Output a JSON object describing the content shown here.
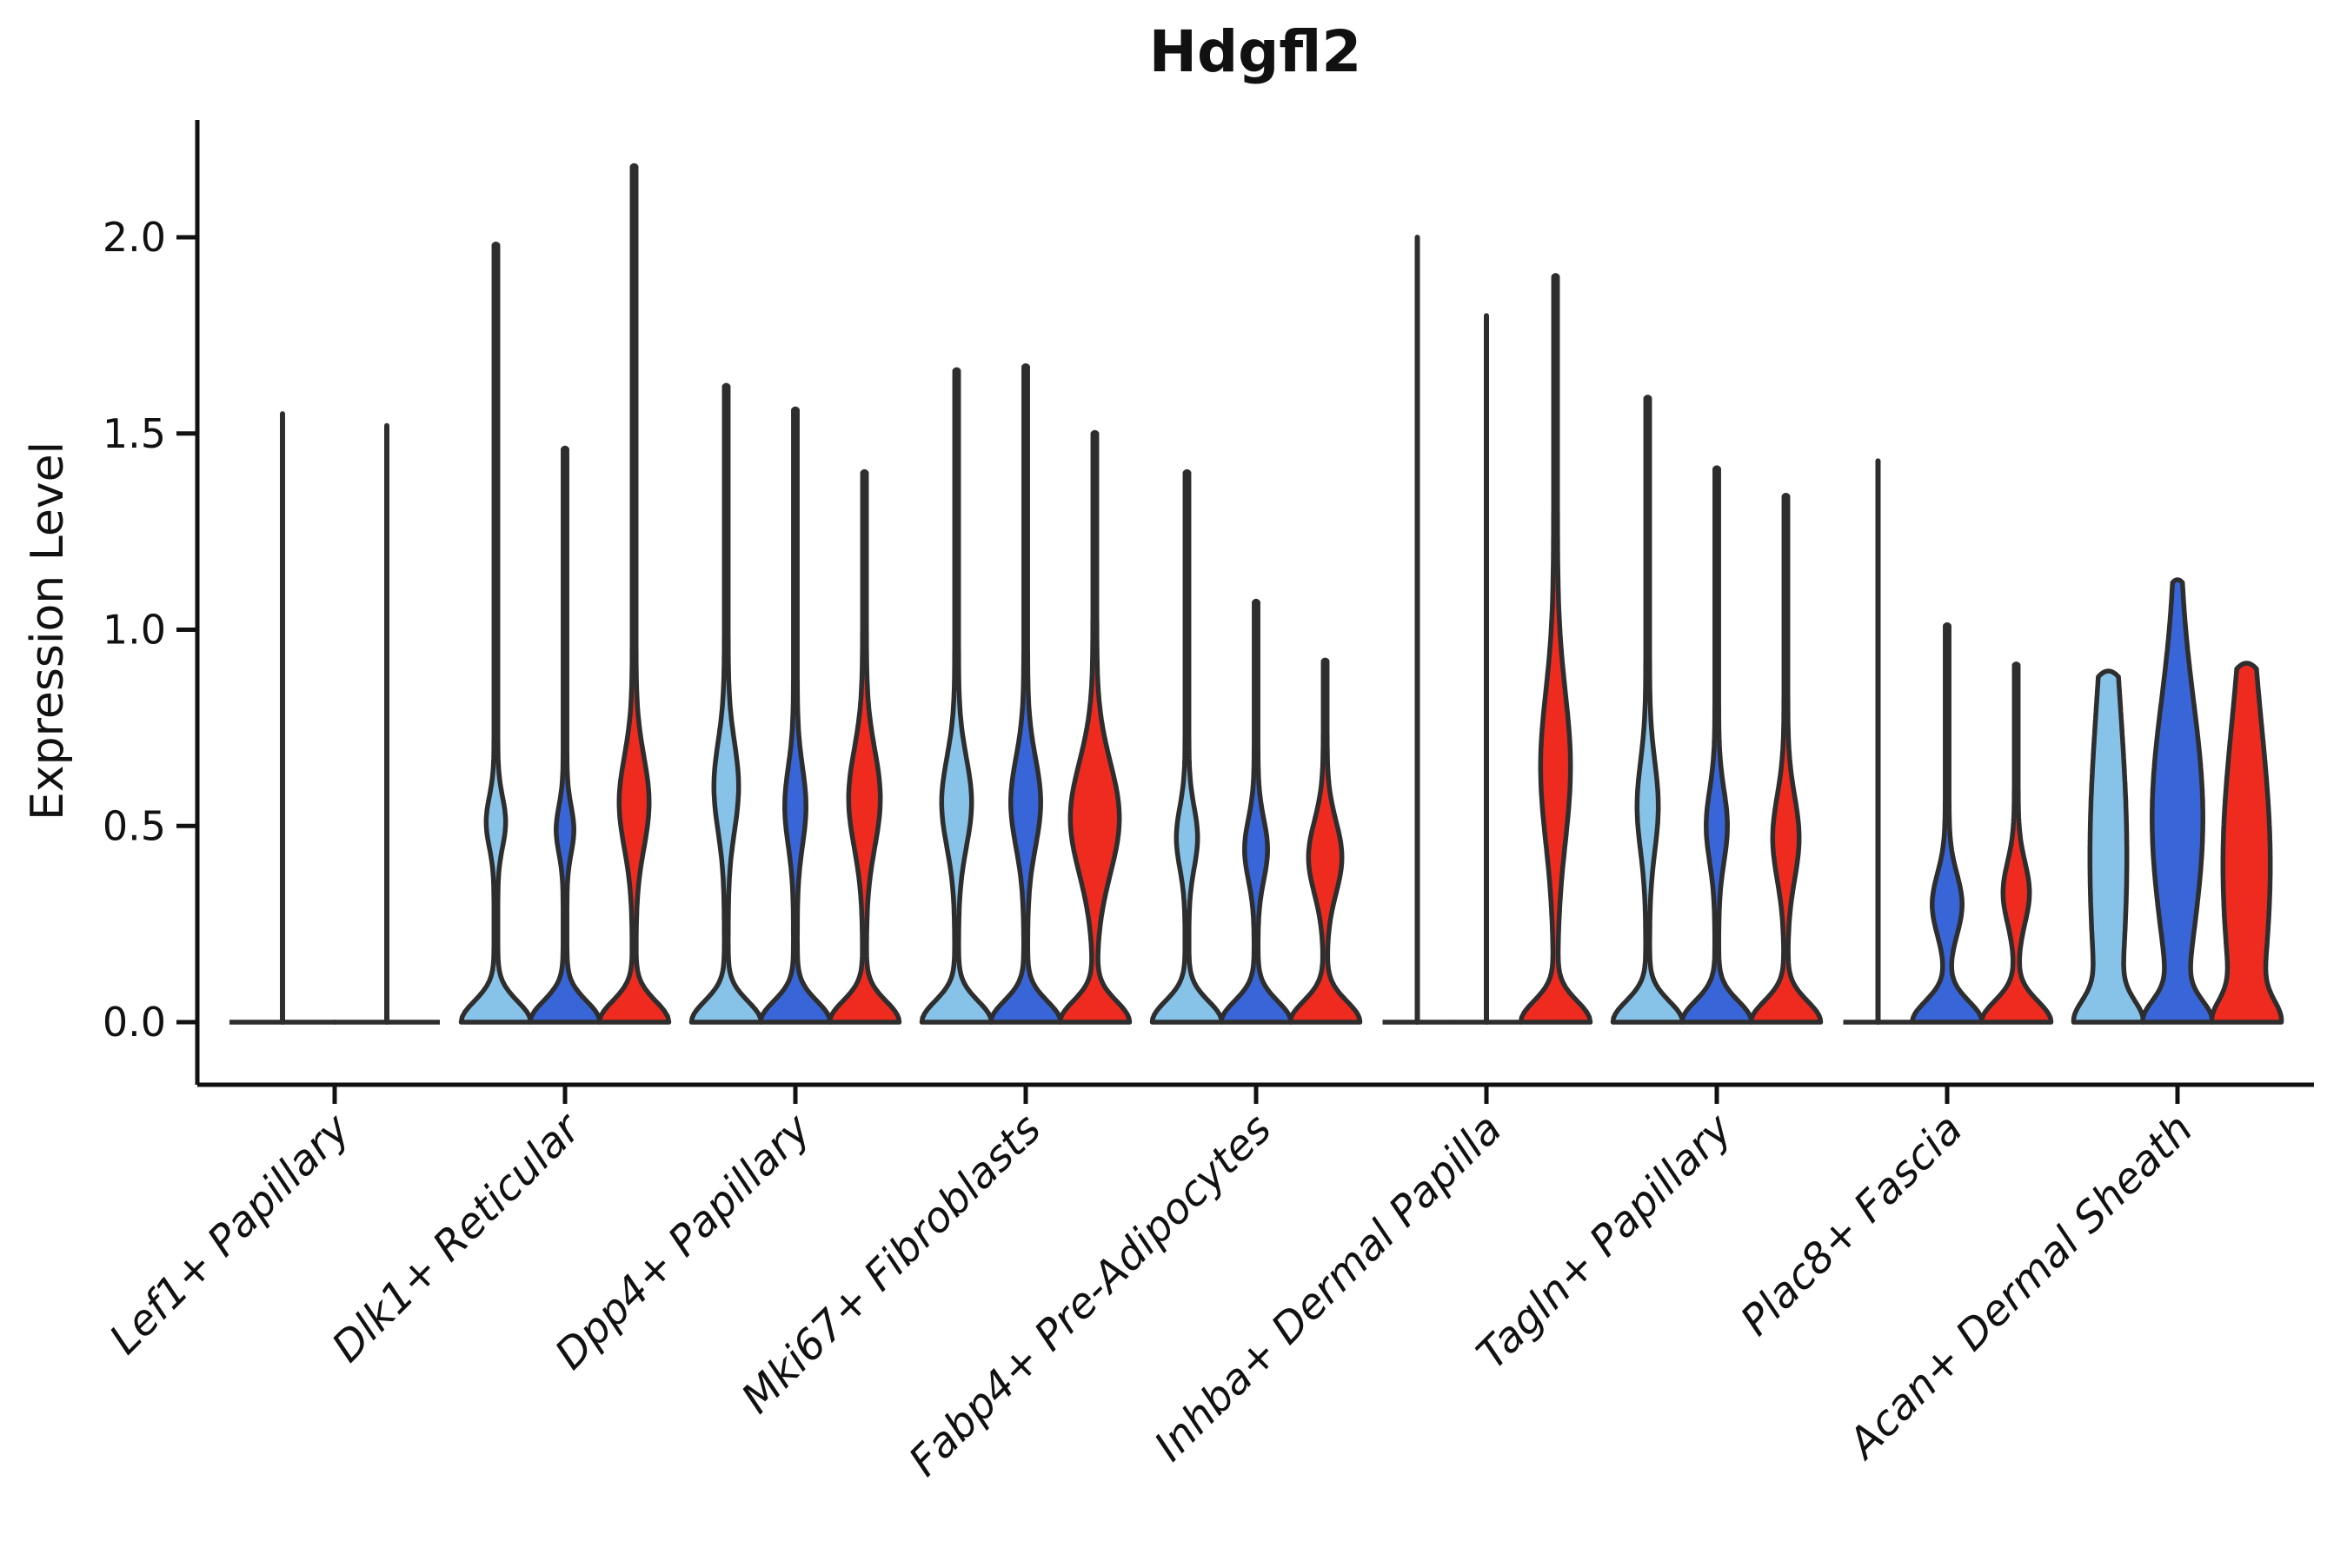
{
  "title": "Hdgfl2",
  "axes": {
    "y": {
      "label": "Expression Level",
      "tick_labels": [
        "0.0",
        "0.5",
        "1.0",
        "1.5",
        "2.0"
      ],
      "tick_values": [
        0,
        0.5,
        1.0,
        1.5,
        2.0
      ]
    },
    "x": {
      "categories": [
        "Lef1+ Papillary",
        "Dlk1+ Reticular",
        "Dpp4+ Papillary",
        "Mki67+ Fibroblasts",
        "Fabp4+ Pre-Adipocytes",
        "Inhba+ Dermal Papilla",
        "Tagln+ Papillary",
        "Plac8+ Fascia",
        "Acan+ Dermal Sheath"
      ]
    }
  },
  "colors": {
    "light_blue": "#87C3E9",
    "royal_blue": "#3866D9",
    "red": "#EF2B20",
    "line_only": "none",
    "outline": "#2E2E2E",
    "axis": "#111111",
    "background": "#FFFFFF"
  },
  "chart_data": {
    "type": "violin",
    "title": "Hdgfl2",
    "xlabel": "",
    "ylabel": "Expression Level",
    "ylim": [
      0,
      2.3
    ],
    "yticks": [
      0,
      0.5,
      1.0,
      1.5,
      2.0
    ],
    "grid": false,
    "legend_position": "none",
    "series": [
      "light_blue",
      "royal_blue",
      "red"
    ],
    "categories": [
      "Lef1+ Papillary",
      "Dlk1+ Reticular",
      "Dpp4+ Papillary",
      "Mki67+ Fibroblasts",
      "Fabp4+ Pre-Adipocytes",
      "Inhba+ Dermal Papilla",
      "Tagln+ Papillary",
      "Plac8+ Fascia",
      "Acan+ Dermal Sheath"
    ],
    "violins": [
      [
        {
          "series": "line_only",
          "shape": "spike",
          "offset": -60,
          "max_expression": 1.55,
          "base_halfwidth": 61,
          "bulge": null
        },
        {
          "series": "line_only",
          "shape": "spike",
          "offset": 60,
          "max_expression": 1.52,
          "base_halfwidth": 61,
          "bulge": null
        }
      ],
      [
        {
          "series": "light_blue",
          "shape": "violin",
          "offset": -79.5,
          "max_expression": 1.98,
          "base_halfwidth": 40,
          "bulge": {
            "center": 0.51,
            "spread": 0.09,
            "halfwidth": 9
          }
        },
        {
          "series": "royal_blue",
          "shape": "violin",
          "offset": 0,
          "max_expression": 1.46,
          "base_halfwidth": 40,
          "bulge": {
            "center": 0.49,
            "spread": 0.085,
            "halfwidth": 8
          }
        },
        {
          "series": "red",
          "shape": "violin",
          "offset": 79.5,
          "max_expression": 2.18,
          "base_halfwidth": 40,
          "bulge": {
            "center": 0.56,
            "spread": 0.165,
            "halfwidth": 15
          }
        }
      ],
      [
        {
          "series": "light_blue",
          "shape": "violin",
          "offset": -79.5,
          "max_expression": 1.62,
          "base_halfwidth": 40,
          "bulge": {
            "center": 0.6,
            "spread": 0.16,
            "halfwidth": 12
          }
        },
        {
          "series": "royal_blue",
          "shape": "violin",
          "offset": 0,
          "max_expression": 1.56,
          "base_halfwidth": 40,
          "bulge": {
            "center": 0.55,
            "spread": 0.14,
            "halfwidth": 10
          }
        },
        {
          "series": "red",
          "shape": "violin",
          "offset": 79.5,
          "max_expression": 1.4,
          "base_halfwidth": 40,
          "bulge": {
            "center": 0.57,
            "spread": 0.175,
            "halfwidth": 16
          }
        }
      ],
      [
        {
          "series": "light_blue",
          "shape": "violin",
          "offset": -79.5,
          "max_expression": 1.66,
          "base_halfwidth": 40,
          "bulge": {
            "center": 0.56,
            "spread": 0.16,
            "halfwidth": 15
          }
        },
        {
          "series": "royal_blue",
          "shape": "violin",
          "offset": 0,
          "max_expression": 1.67,
          "base_halfwidth": 40,
          "bulge": {
            "center": 0.56,
            "spread": 0.16,
            "halfwidth": 15
          }
        },
        {
          "series": "red",
          "shape": "violin",
          "offset": 79.5,
          "max_expression": 1.5,
          "base_halfwidth": 40,
          "bulge": {
            "center": 0.52,
            "spread": 0.2,
            "halfwidth": 26
          }
        }
      ],
      [
        {
          "series": "light_blue",
          "shape": "violin",
          "offset": -79.5,
          "max_expression": 1.4,
          "base_halfwidth": 40,
          "bulge": {
            "center": 0.47,
            "spread": 0.11,
            "halfwidth": 10
          }
        },
        {
          "series": "royal_blue",
          "shape": "violin",
          "offset": 0,
          "max_expression": 1.07,
          "base_halfwidth": 40,
          "bulge": {
            "center": 0.44,
            "spread": 0.11,
            "halfwidth": 11
          }
        },
        {
          "series": "red",
          "shape": "violin",
          "offset": 79.5,
          "max_expression": 0.92,
          "base_halfwidth": 40,
          "bulge": {
            "center": 0.42,
            "spread": 0.13,
            "halfwidth": 17
          }
        }
      ],
      [
        {
          "series": "line_only",
          "shape": "spike",
          "offset": -79.5,
          "max_expression": 2.0,
          "base_halfwidth": 40,
          "bulge": null
        },
        {
          "series": "line_only",
          "shape": "spike",
          "offset": 0,
          "max_expression": 1.8,
          "base_halfwidth": 40,
          "bulge": null
        },
        {
          "series": "red",
          "shape": "violin",
          "offset": 79.5,
          "max_expression": 1.9,
          "base_halfwidth": 40,
          "bulge": {
            "center": 0.65,
            "spread": 0.27,
            "halfwidth": 15
          }
        }
      ],
      [
        {
          "series": "light_blue",
          "shape": "violin",
          "offset": -79.5,
          "max_expression": 1.59,
          "base_halfwidth": 40,
          "bulge": {
            "center": 0.55,
            "spread": 0.16,
            "halfwidth": 10
          }
        },
        {
          "series": "royal_blue",
          "shape": "violin",
          "offset": 0,
          "max_expression": 1.41,
          "base_halfwidth": 40,
          "bulge": {
            "center": 0.5,
            "spread": 0.13,
            "halfwidth": 10
          }
        },
        {
          "series": "red",
          "shape": "violin",
          "offset": 79.5,
          "max_expression": 1.34,
          "base_halfwidth": 40,
          "bulge": {
            "center": 0.47,
            "spread": 0.15,
            "halfwidth": 13
          }
        }
      ],
      [
        {
          "series": "line_only",
          "shape": "spike",
          "offset": -79.5,
          "max_expression": 1.43,
          "base_halfwidth": 40,
          "bulge": null
        },
        {
          "series": "royal_blue",
          "shape": "violin",
          "offset": 0,
          "max_expression": 1.01,
          "base_halfwidth": 40,
          "bulge": {
            "center": 0.3,
            "spread": 0.11,
            "halfwidth": 15
          }
        },
        {
          "series": "red",
          "shape": "violin",
          "offset": 79.5,
          "max_expression": 0.91,
          "base_halfwidth": 40,
          "bulge": {
            "center": 0.33,
            "spread": 0.11,
            "halfwidth": 13
          }
        }
      ],
      [
        {
          "series": "light_blue",
          "shape": "column",
          "offset": -79.5,
          "max_expression": 0.88,
          "base_halfwidth": 40,
          "bulge": {
            "center": 0.42,
            "spread": 0.55,
            "halfwidth": 19
          }
        },
        {
          "series": "royal_blue",
          "shape": "column",
          "offset": 0,
          "max_expression": 1.12,
          "base_halfwidth": 40,
          "bulge": {
            "center": 0.52,
            "spread": 0.42,
            "halfwidth": 27
          }
        },
        {
          "series": "red",
          "shape": "column",
          "offset": 79.5,
          "max_expression": 0.9,
          "base_halfwidth": 40,
          "bulge": {
            "center": 0.4,
            "spread": 0.5,
            "halfwidth": 25
          }
        }
      ]
    ]
  }
}
